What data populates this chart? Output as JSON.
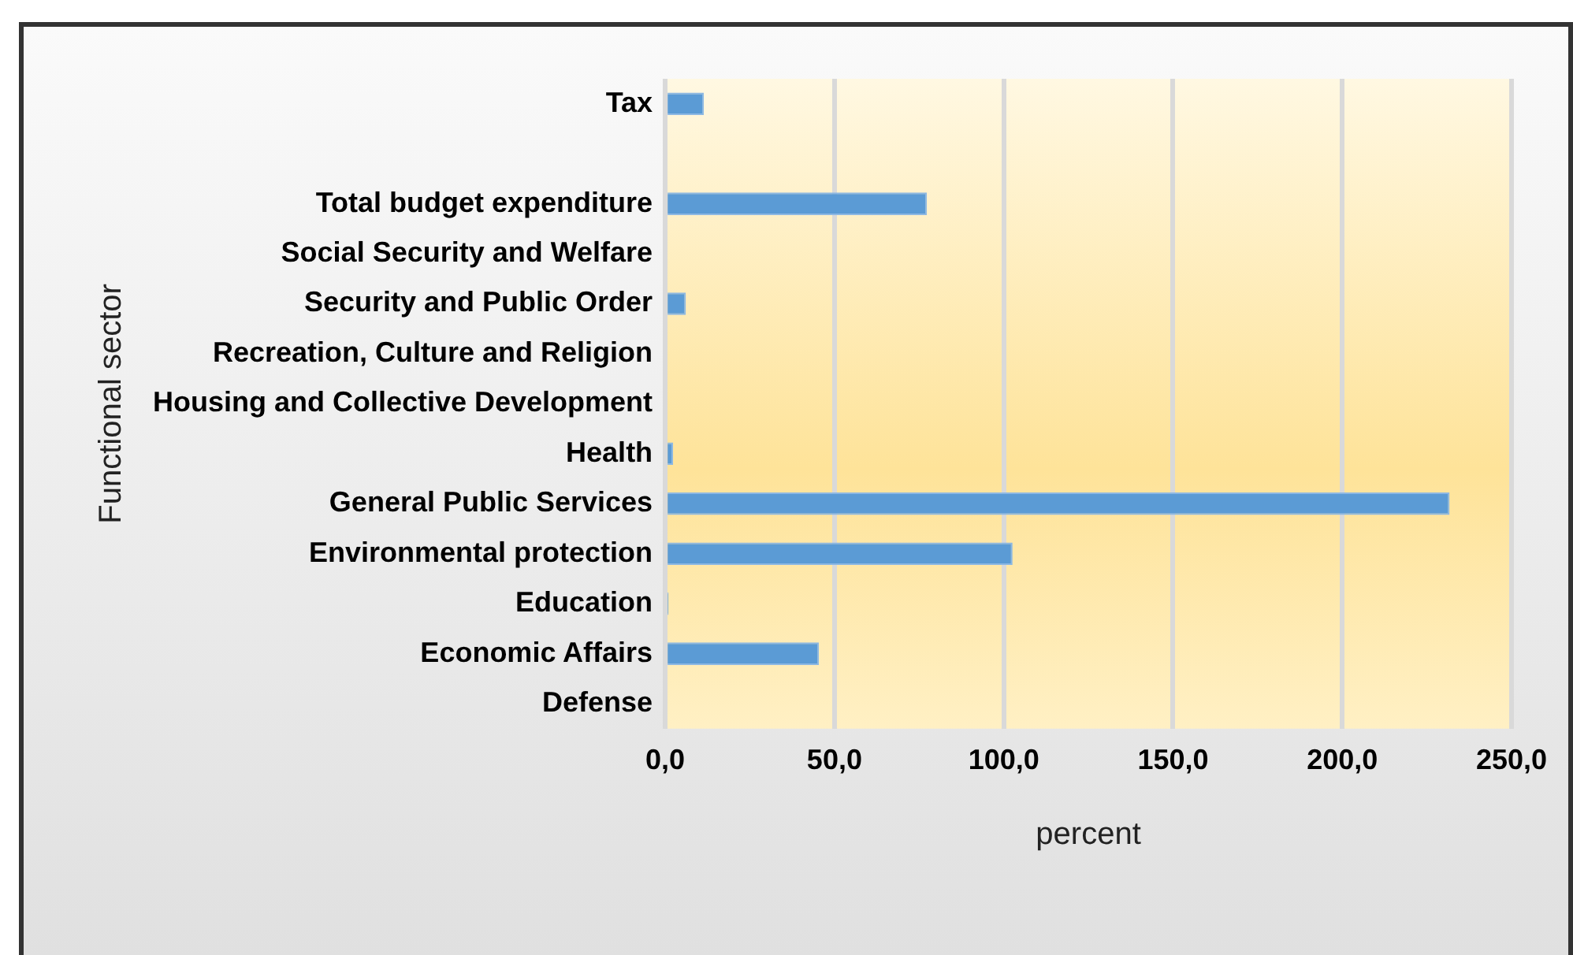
{
  "chart_data": {
    "type": "bar",
    "orientation": "horizontal",
    "xlabel": "percent",
    "ylabel": "Functional sector",
    "categories": [
      "Tax",
      null,
      "Total budget expenditure",
      "Social Security and Welfare",
      "Security and Public Order",
      "Recreation, Culture and Religion",
      "Housing and Collective Development",
      "Health",
      "General Public Services",
      "Environmental protection",
      "Education",
      "Economic Affairs",
      "Defense"
    ],
    "values": [
      11.4,
      null,
      77.3,
      0,
      6.1,
      0,
      0,
      2.3,
      231.7,
      102.6,
      1,
      45.4,
      0
    ],
    "color": "#5b9bd5",
    "xlim": [
      0,
      250
    ],
    "xticks": [
      {
        "value": 0,
        "label": "0,0"
      },
      {
        "value": 50,
        "label": "50,0"
      },
      {
        "value": 100,
        "label": "100,0"
      },
      {
        "value": 150,
        "label": "150,0"
      },
      {
        "value": 200,
        "label": "200,0"
      },
      {
        "value": 250,
        "label": "250,0"
      }
    ],
    "grid": "x",
    "legend": false
  }
}
